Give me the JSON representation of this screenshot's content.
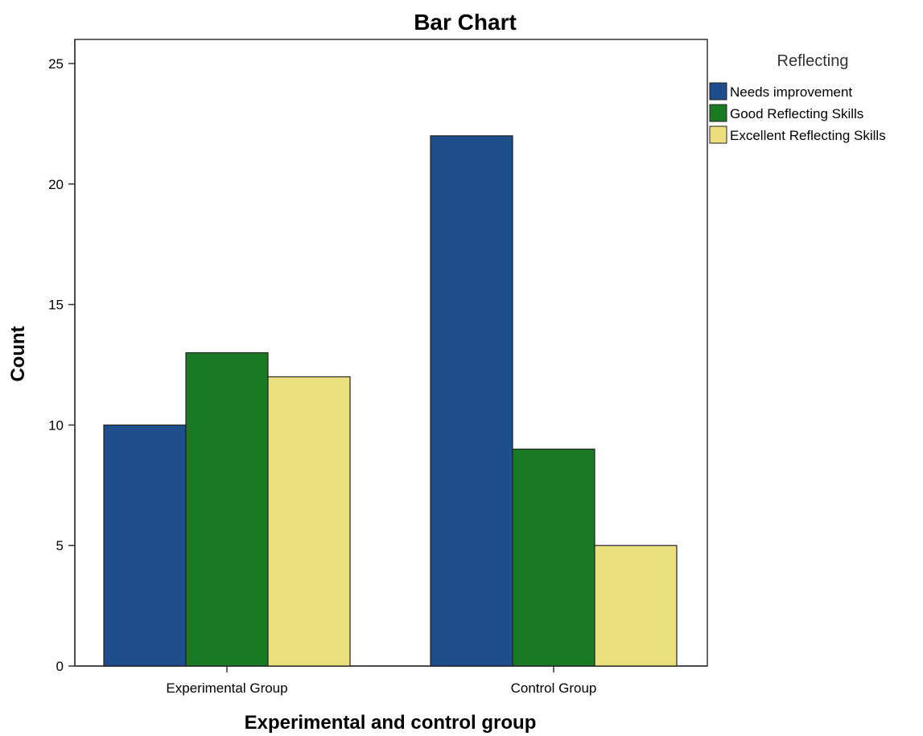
{
  "chart_data": {
    "type": "bar",
    "title": "Bar Chart",
    "xlabel": "Experimental and control group",
    "ylabel": "Count",
    "categories": [
      "Experimental Group",
      "Control Group"
    ],
    "series": [
      {
        "name": "Needs improvement",
        "values": [
          10,
          22
        ],
        "color": "#1f4e8c"
      },
      {
        "name": "Good Reflecting Skills",
        "values": [
          13,
          9
        ],
        "color": "#1a7a24"
      },
      {
        "name": "Excellent Reflecting Skills",
        "values": [
          12,
          5
        ],
        "color": "#ecdf7e"
      }
    ],
    "legend_title": "Reflecting",
    "legend_placement": "right",
    "ylim": [
      0,
      26
    ],
    "yticks": [
      0,
      5,
      10,
      15,
      20,
      25
    ],
    "grid": false
  }
}
